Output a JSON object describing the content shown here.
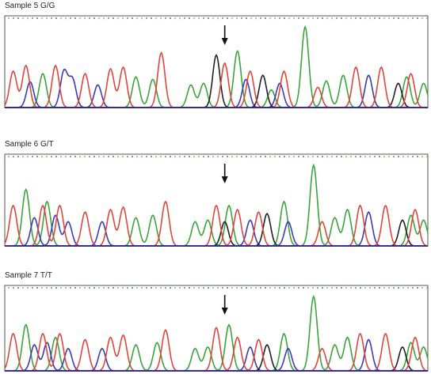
{
  "figure": {
    "panels": [
      {
        "label": "Sample 5 G/G",
        "genotype": "G/G",
        "arrow_position": 0.52,
        "baseline_color": "#3a2c8c"
      },
      {
        "label": "Sample 6 G/T",
        "genotype": "G/T",
        "arrow_position": 0.52,
        "baseline_color": "#3a2c8c"
      },
      {
        "label": "Sample 7 T/T",
        "genotype": "T/T",
        "arrow_position": 0.52,
        "baseline_color": "#3a2c8c"
      }
    ]
  },
  "chart_data": [
    {
      "type": "line",
      "title": "Sample 5 G/G",
      "xlabel": "",
      "ylabel": "",
      "grid": false,
      "legend": "none",
      "series_colors": {
        "A": "#3aa63a",
        "C": "#3b3bb8",
        "G": "#222222",
        "T": "#e0463c"
      },
      "peaks": {
        "A": [
          [
            0.09,
            0.42
          ],
          [
            0.31,
            0.38
          ],
          [
            0.35,
            0.35
          ],
          [
            0.44,
            0.28
          ],
          [
            0.47,
            0.3
          ],
          [
            0.55,
            0.7
          ],
          [
            0.63,
            0.22
          ],
          [
            0.71,
            1.0
          ],
          [
            0.76,
            0.33
          ],
          [
            0.8,
            0.4
          ],
          [
            0.95,
            0.38
          ],
          [
            0.99,
            0.3
          ]
        ],
        "C": [
          [
            0.06,
            0.32
          ],
          [
            0.14,
            0.45
          ],
          [
            0.16,
            0.35
          ],
          [
            0.22,
            0.28
          ],
          [
            0.57,
            0.35
          ],
          [
            0.65,
            0.3
          ],
          [
            0.86,
            0.4
          ]
        ],
        "G": [
          [
            0.5,
            0.65
          ],
          [
            0.61,
            0.4
          ],
          [
            0.93,
            0.3
          ]
        ],
        "T": [
          [
            0.02,
            0.45
          ],
          [
            0.05,
            0.52
          ],
          [
            0.12,
            0.52
          ],
          [
            0.19,
            0.42
          ],
          [
            0.25,
            0.48
          ],
          [
            0.28,
            0.5
          ],
          [
            0.37,
            0.68
          ],
          [
            0.52,
            0.55
          ],
          [
            0.58,
            0.45
          ],
          [
            0.66,
            0.45
          ],
          [
            0.74,
            0.25
          ],
          [
            0.83,
            0.5
          ],
          [
            0.89,
            0.5
          ],
          [
            0.96,
            0.42
          ]
        ]
      }
    },
    {
      "type": "line",
      "title": "Sample 6 G/T",
      "xlabel": "",
      "ylabel": "",
      "grid": false,
      "legend": "none",
      "series_colors": {
        "A": "#3aa63a",
        "C": "#3b3bb8",
        "G": "#222222",
        "T": "#e0463c"
      },
      "peaks": {
        "A": [
          [
            0.05,
            0.7
          ],
          [
            0.1,
            0.55
          ],
          [
            0.31,
            0.35
          ],
          [
            0.35,
            0.38
          ],
          [
            0.45,
            0.3
          ],
          [
            0.48,
            0.32
          ],
          [
            0.53,
            0.5
          ],
          [
            0.66,
            0.55
          ],
          [
            0.73,
            1.0
          ],
          [
            0.78,
            0.35
          ],
          [
            0.81,
            0.45
          ],
          [
            0.96,
            0.38
          ],
          [
            0.99,
            0.32
          ]
        ],
        "C": [
          [
            0.07,
            0.35
          ],
          [
            0.12,
            0.38
          ],
          [
            0.15,
            0.3
          ],
          [
            0.23,
            0.3
          ],
          [
            0.58,
            0.32
          ],
          [
            0.67,
            0.3
          ],
          [
            0.86,
            0.42
          ]
        ],
        "G": [
          [
            0.52,
            0.3
          ],
          [
            0.62,
            0.4
          ],
          [
            0.94,
            0.32
          ]
        ],
        "T": [
          [
            0.02,
            0.5
          ],
          [
            0.09,
            0.5
          ],
          [
            0.13,
            0.5
          ],
          [
            0.19,
            0.42
          ],
          [
            0.25,
            0.45
          ],
          [
            0.28,
            0.48
          ],
          [
            0.38,
            0.55
          ],
          [
            0.5,
            0.5
          ],
          [
            0.55,
            0.45
          ],
          [
            0.6,
            0.42
          ],
          [
            0.75,
            0.3
          ],
          [
            0.84,
            0.5
          ],
          [
            0.9,
            0.5
          ],
          [
            0.97,
            0.45
          ]
        ]
      }
    },
    {
      "type": "line",
      "title": "Sample 7 T/T",
      "xlabel": "",
      "ylabel": "",
      "grid": false,
      "legend": "none",
      "series_colors": {
        "A": "#3aa63a",
        "C": "#3b3bb8",
        "G": "#222222",
        "T": "#e0463c"
      },
      "peaks": {
        "A": [
          [
            0.05,
            0.62
          ],
          [
            0.12,
            0.45
          ],
          [
            0.31,
            0.35
          ],
          [
            0.36,
            0.38
          ],
          [
            0.45,
            0.3
          ],
          [
            0.48,
            0.32
          ],
          [
            0.53,
            0.62
          ],
          [
            0.66,
            0.5
          ],
          [
            0.73,
            1.0
          ],
          [
            0.78,
            0.35
          ],
          [
            0.81,
            0.45
          ],
          [
            0.96,
            0.38
          ],
          [
            0.99,
            0.32
          ]
        ],
        "C": [
          [
            0.07,
            0.35
          ],
          [
            0.1,
            0.38
          ],
          [
            0.15,
            0.3
          ],
          [
            0.23,
            0.3
          ],
          [
            0.58,
            0.32
          ],
          [
            0.67,
            0.3
          ],
          [
            0.86,
            0.42
          ]
        ],
        "G": [
          [
            0.62,
            0.35
          ],
          [
            0.94,
            0.32
          ]
        ],
        "T": [
          [
            0.02,
            0.5
          ],
          [
            0.09,
            0.5
          ],
          [
            0.13,
            0.5
          ],
          [
            0.19,
            0.42
          ],
          [
            0.25,
            0.45
          ],
          [
            0.28,
            0.48
          ],
          [
            0.38,
            0.55
          ],
          [
            0.5,
            0.58
          ],
          [
            0.55,
            0.45
          ],
          [
            0.6,
            0.42
          ],
          [
            0.75,
            0.3
          ],
          [
            0.84,
            0.5
          ],
          [
            0.9,
            0.5
          ],
          [
            0.97,
            0.45
          ]
        ]
      }
    }
  ]
}
